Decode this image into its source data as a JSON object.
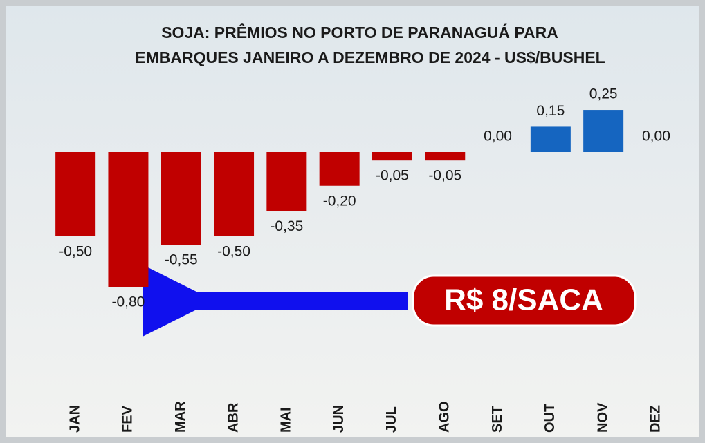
{
  "chart_data": {
    "type": "bar",
    "title": [
      "SOJA: PRÊMIOS NO PORTO DE PARANAGUÁ PARA",
      "EMBARQUES JANEIRO A DEZEMBRO DE 2024 - US$/BUSHEL"
    ],
    "categories": [
      "JAN",
      "FEV",
      "MAR",
      "ABR",
      "MAI",
      "JUN",
      "JUL",
      "AGO",
      "SET",
      "OUT",
      "NOV",
      "DEZ"
    ],
    "values": [
      -0.5,
      -0.8,
      -0.55,
      -0.5,
      -0.35,
      -0.2,
      -0.05,
      -0.05,
      0.0,
      0.15,
      0.25,
      0.0
    ],
    "value_labels": [
      "-0,50",
      "-0,80",
      "-0,55",
      "-0,50",
      "-0,35",
      "-0,20",
      "-0,05",
      "-0,05",
      "0,00",
      "0,15",
      "0,25",
      "0,00"
    ],
    "color_negative": "#c00000",
    "color_positive": "#1565c0",
    "annotation": "R$ 8/SACA"
  }
}
